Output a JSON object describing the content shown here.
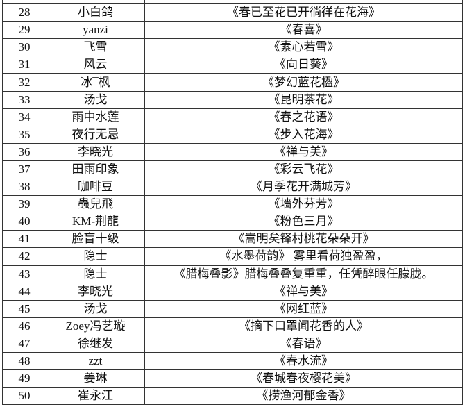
{
  "rows": [
    {
      "no": "28",
      "name": "小白鸽",
      "title": "《春已至花已开徜徉在花海》"
    },
    {
      "no": "29",
      "name": "yanzi",
      "title": "《春喜》"
    },
    {
      "no": "30",
      "name": "飞雪",
      "title": "《素心若雪》"
    },
    {
      "no": "31",
      "name": "风云",
      "title": "《向日葵》"
    },
    {
      "no": "32",
      "name": "冰¯枫",
      "title": "《梦幻蓝花楹》"
    },
    {
      "no": "33",
      "name": "汤戈",
      "title": "《昆明茶花》"
    },
    {
      "no": "34",
      "name": "雨中水莲",
      "title": "《春之花语》"
    },
    {
      "no": "35",
      "name": "夜行无忌",
      "title": "《步入花海》"
    },
    {
      "no": "36",
      "name": "李晓光",
      "title": "《禅与美》"
    },
    {
      "no": "37",
      "name": "田雨印象",
      "title": "《彩云飞花》"
    },
    {
      "no": "38",
      "name": "咖啡豆",
      "title": "《月季花开满城芳》"
    },
    {
      "no": "39",
      "name": "蟲兒飛",
      "title": "《墙外芬芳》"
    },
    {
      "no": "40",
      "name": "KM-荆龍",
      "title": "《粉色三月》"
    },
    {
      "no": "41",
      "name": "脸盲十级",
      "title": "《嵩明矣铎村桃花朵朵开》"
    },
    {
      "no": "42",
      "name": "隐士",
      "title": "《水墨荷韵》 雾里看荷独盈盈，"
    },
    {
      "no": "43",
      "name": "隐士",
      "title": "《腊梅叠影》腊梅叠叠复重重，任凭醉眼任朦胧。"
    },
    {
      "no": "44",
      "name": "李晓光",
      "title": "《禅与美》"
    },
    {
      "no": "45",
      "name": "汤戈",
      "title": "《网红蓝》"
    },
    {
      "no": "46",
      "name": "Zoey冯艺璇",
      "title": "《摘下口罩闻花香的人》"
    },
    {
      "no": "47",
      "name": "徐继发",
      "title": "《春语》"
    },
    {
      "no": "48",
      "name": "zzt",
      "title": "《春水流》"
    },
    {
      "no": "49",
      "name": "姜琳",
      "title": "《春城春夜樱花美》"
    },
    {
      "no": "50",
      "name": "崔永江",
      "title": "《捞渔河郁金香》"
    }
  ]
}
